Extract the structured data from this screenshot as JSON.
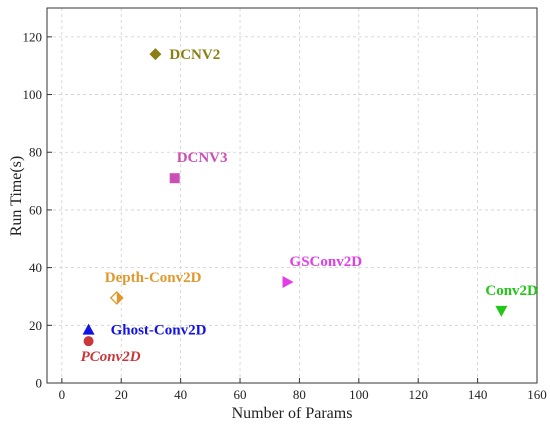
{
  "chart_data": {
    "type": "scatter",
    "xlabel": "Number of Params",
    "ylabel": "Run Time(s)",
    "xlim": [
      -5,
      160
    ],
    "ylim": [
      0,
      130
    ],
    "xticks": [
      0,
      20,
      40,
      60,
      80,
      100,
      120,
      140,
      160
    ],
    "yticks": [
      0,
      20,
      40,
      60,
      80,
      100,
      120
    ],
    "grid": true,
    "points": [
      {
        "name": "DCNV2",
        "x": 31.5,
        "y": 114,
        "marker": "diamond",
        "color": "#8a7f13"
      },
      {
        "name": "DCNV3",
        "x": 38,
        "y": 71,
        "marker": "square",
        "color": "#cc4fb6"
      },
      {
        "name": "GSConv2D",
        "x": 76,
        "y": 35,
        "marker": "triangle-right",
        "color": "#e23de6"
      },
      {
        "name": "Conv2D",
        "x": 148,
        "y": 25,
        "marker": "triangle-down",
        "color": "#21c617"
      },
      {
        "name": "Depth-Conv2D",
        "x": 18.5,
        "y": 29.5,
        "marker": "half-diamond",
        "color": "#e0972c"
      },
      {
        "name": "Ghost-Conv2D",
        "x": 9,
        "y": 18.5,
        "marker": "triangle-up",
        "color": "#1212e6"
      },
      {
        "name": "PConv2D",
        "x": 9,
        "y": 14.5,
        "marker": "circle",
        "color": "#c9373b"
      }
    ]
  }
}
